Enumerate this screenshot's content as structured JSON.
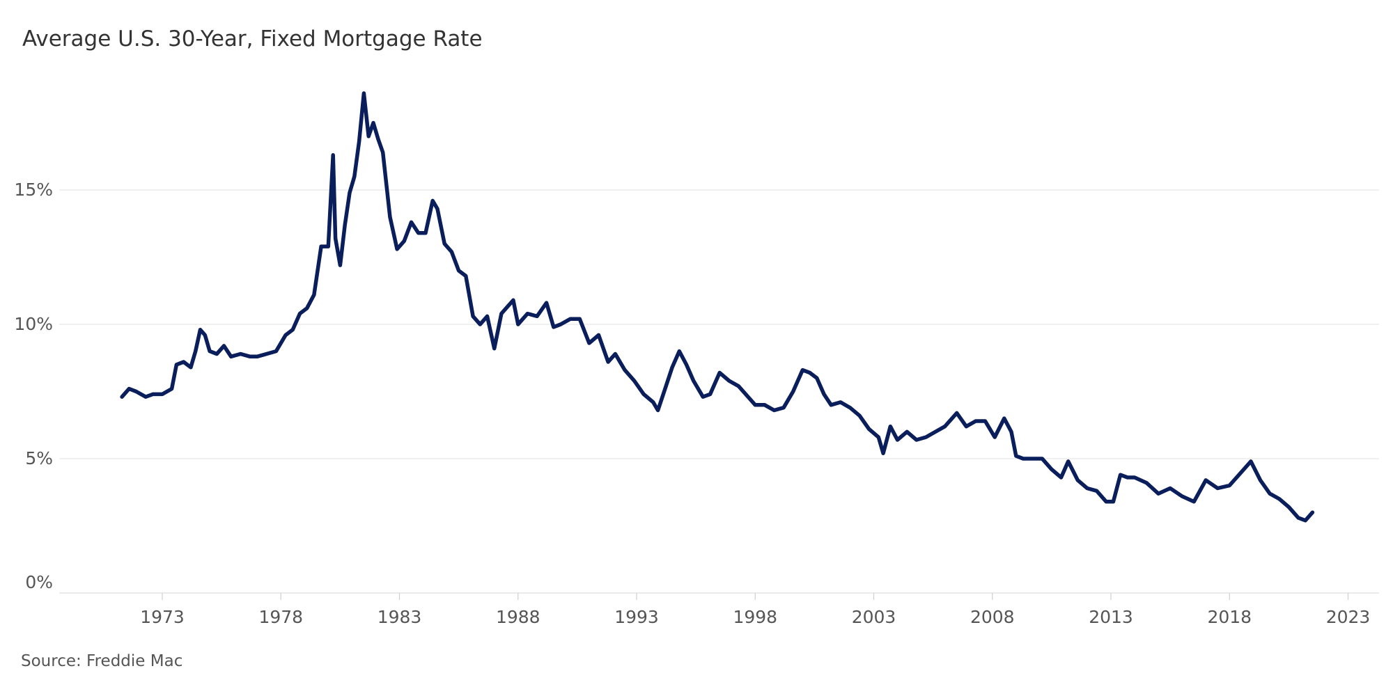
{
  "title": "Average U.S. 30-Year, Fixed Mortgage Rate",
  "source": "Source: Freddie Mac",
  "colors": {
    "line": "#0a1e5c",
    "grid": "#e8e8e8",
    "text": "#555555"
  },
  "chart_data": {
    "type": "line",
    "title": "Average U.S. 30-Year, Fixed Mortgage Rate",
    "xlabel": "",
    "ylabel": "",
    "xlim": [
      1968.8,
      2024.0
    ],
    "ylim": [
      0,
      20
    ],
    "grid": true,
    "legend": "none",
    "x_ticks": [
      1973,
      1978,
      1983,
      1988,
      1993,
      1998,
      2003,
      2008,
      2013,
      2018,
      2023
    ],
    "x_tick_labels": [
      "1973",
      "1978",
      "1983",
      "1988",
      "1993",
      "1998",
      "2003",
      "2008",
      "2013",
      "2018",
      "2023"
    ],
    "y_ticks": [
      0,
      5,
      10,
      15
    ],
    "y_tick_labels": [
      "0%",
      "5%",
      "10%",
      "15%"
    ],
    "series": [
      {
        "x": [
          1971.3,
          1971.6,
          1971.9,
          1972.3,
          1972.6,
          1973.0,
          1973.4,
          1973.6,
          1973.9,
          1974.2,
          1974.4,
          1974.6,
          1974.8,
          1975.0,
          1975.3,
          1975.6,
          1975.9,
          1976.3,
          1976.7,
          1977.0,
          1977.4,
          1977.8,
          1978.2,
          1978.5,
          1978.8,
          1979.1,
          1979.4,
          1979.7,
          1980.0,
          1980.2,
          1980.3,
          1980.5,
          1980.7,
          1980.9,
          1981.1,
          1981.3,
          1981.5,
          1981.7,
          1981.9,
          1982.1,
          1982.3,
          1982.6,
          1982.9,
          1983.2,
          1983.5,
          1983.8,
          1984.1,
          1984.4,
          1984.6,
          1984.9,
          1985.2,
          1985.5,
          1985.8,
          1986.1,
          1986.4,
          1986.7,
          1987.0,
          1987.3,
          1987.5,
          1987.8,
          1988.0,
          1988.4,
          1988.8,
          1989.2,
          1989.5,
          1989.8,
          1990.2,
          1990.6,
          1991.0,
          1991.4,
          1991.8,
          1992.1,
          1992.5,
          1992.9,
          1993.3,
          1993.7,
          1993.9,
          1994.2,
          1994.5,
          1994.8,
          1995.1,
          1995.4,
          1995.8,
          1996.1,
          1996.5,
          1996.9,
          1997.3,
          1997.7,
          1998.0,
          1998.4,
          1998.8,
          1999.2,
          1999.6,
          2000.0,
          2000.3,
          2000.6,
          2000.9,
          2001.2,
          2001.6,
          2002.0,
          2002.4,
          2002.8,
          2003.2,
          2003.4,
          2003.7,
          2004.0,
          2004.4,
          2004.8,
          2005.2,
          2005.6,
          2006.0,
          2006.5,
          2006.9,
          2007.3,
          2007.7,
          2008.1,
          2008.5,
          2008.8,
          2009.0,
          2009.3,
          2009.7,
          2010.1,
          2010.5,
          2010.9,
          2011.2,
          2011.6,
          2012.0,
          2012.4,
          2012.8,
          2013.1,
          2013.4,
          2013.7,
          2014.0,
          2014.5,
          2015.0,
          2015.5,
          2016.0,
          2016.5,
          2017.0,
          2017.5,
          2018.0,
          2018.5,
          2018.9,
          2019.3,
          2019.7,
          2020.1,
          2020.5,
          2020.9,
          2021.2,
          2021.5
        ],
        "y": [
          7.3,
          7.6,
          7.5,
          7.3,
          7.4,
          7.4,
          7.6,
          8.5,
          8.6,
          8.4,
          9.0,
          9.8,
          9.6,
          9.0,
          8.9,
          9.2,
          8.8,
          8.9,
          8.8,
          8.8,
          8.9,
          9.0,
          9.6,
          9.8,
          10.4,
          10.6,
          11.1,
          12.9,
          12.9,
          16.3,
          13.2,
          12.2,
          13.7,
          14.9,
          15.5,
          16.8,
          18.6,
          17.0,
          17.5,
          16.9,
          16.4,
          14.0,
          12.8,
          13.1,
          13.8,
          13.4,
          13.4,
          14.6,
          14.3,
          13.0,
          12.7,
          12.0,
          11.8,
          10.3,
          10.0,
          10.3,
          9.1,
          10.4,
          10.6,
          10.9,
          10.0,
          10.4,
          10.3,
          10.8,
          9.9,
          10.0,
          10.2,
          10.2,
          9.3,
          9.6,
          8.6,
          8.9,
          8.3,
          7.9,
          7.4,
          7.1,
          6.8,
          7.6,
          8.4,
          9.0,
          8.5,
          7.9,
          7.3,
          7.4,
          8.2,
          7.9,
          7.7,
          7.3,
          7.0,
          7.0,
          6.8,
          6.9,
          7.5,
          8.3,
          8.2,
          8.0,
          7.4,
          7.0,
          7.1,
          6.9,
          6.6,
          6.1,
          5.8,
          5.2,
          6.2,
          5.7,
          6.0,
          5.7,
          5.8,
          6.0,
          6.2,
          6.7,
          6.2,
          6.4,
          6.4,
          5.8,
          6.5,
          6.0,
          5.1,
          5.0,
          5.0,
          5.0,
          4.6,
          4.3,
          4.9,
          4.2,
          3.9,
          3.8,
          3.4,
          3.4,
          4.4,
          4.3,
          4.3,
          4.1,
          3.7,
          3.9,
          3.6,
          3.4,
          4.2,
          3.9,
          4.0,
          4.5,
          4.9,
          4.2,
          3.7,
          3.5,
          3.2,
          2.8,
          2.7,
          3.0
        ]
      }
    ]
  }
}
